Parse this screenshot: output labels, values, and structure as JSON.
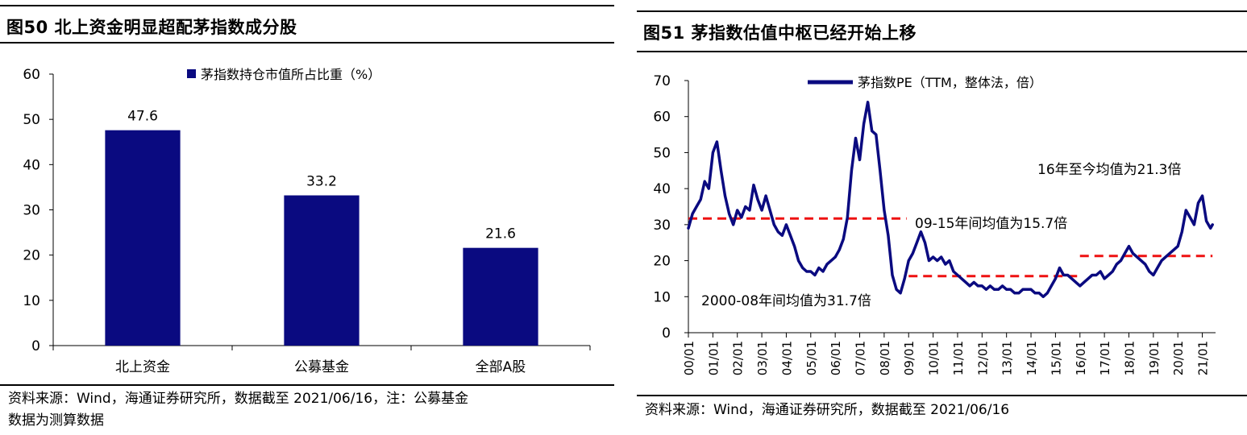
{
  "left": {
    "figure_title": "图50 北上资金明显超配茅指数成分股",
    "source_line1": "资料来源：Wind，海通证券研究所，数据截至 2021/06/16，注：公募基金",
    "source_line2": "数据为测算数据"
  },
  "right": {
    "figure_title": "图51 茅指数估值中枢已经开始上移",
    "source_line1": "资料来源：Wind，海通证券研究所，数据截至 2021/06/16"
  },
  "chart_data": [
    {
      "type": "bar",
      "title": "",
      "categories": [
        "北上资金",
        "公募基金",
        "全部A股"
      ],
      "series": [
        {
          "name": "茅指数持仓市值所占比重（%）",
          "values": [
            47.6,
            33.2,
            21.6
          ]
        }
      ],
      "data_labels": [
        "47.6",
        "33.2",
        "21.6"
      ],
      "ylim": [
        0,
        60
      ],
      "yticks": [
        0,
        10,
        20,
        30,
        40,
        50,
        60
      ],
      "xlabel": "",
      "ylabel": "",
      "grid": false,
      "legend": "top",
      "colors": {
        "bar": "#0a0a80"
      }
    },
    {
      "type": "line",
      "title": "",
      "xlabel": "",
      "ylabel": "",
      "ylim": [
        0,
        70
      ],
      "yticks": [
        0,
        10,
        20,
        30,
        40,
        50,
        60,
        70
      ],
      "x_ticks": [
        "00/01",
        "01/01",
        "02/01",
        "03/01",
        "04/01",
        "05/01",
        "06/01",
        "07/01",
        "08/01",
        "09/01",
        "10/01",
        "11/01",
        "12/01",
        "13/01",
        "14/01",
        "15/01",
        "16/01",
        "17/01",
        "18/01",
        "19/01",
        "20/01",
        "21/01"
      ],
      "grid": false,
      "legend": "top",
      "colors": {
        "line": "#0a0a80",
        "average": "#ee1111"
      },
      "series": [
        {
          "name": "茅指数PE（TTM，整体法，倍）",
          "x": [
            "2000-01",
            "2000-03",
            "2000-05",
            "2000-07",
            "2000-09",
            "2000-11",
            "2001-01",
            "2001-03",
            "2001-05",
            "2001-07",
            "2001-09",
            "2001-11",
            "2002-01",
            "2002-03",
            "2002-05",
            "2002-07",
            "2002-09",
            "2002-11",
            "2003-01",
            "2003-03",
            "2003-05",
            "2003-07",
            "2003-09",
            "2003-11",
            "2004-01",
            "2004-03",
            "2004-05",
            "2004-07",
            "2004-09",
            "2004-11",
            "2005-01",
            "2005-03",
            "2005-05",
            "2005-07",
            "2005-09",
            "2005-11",
            "2006-01",
            "2006-03",
            "2006-05",
            "2006-07",
            "2006-09",
            "2006-11",
            "2007-01",
            "2007-03",
            "2007-05",
            "2007-07",
            "2007-09",
            "2007-11",
            "2008-01",
            "2008-03",
            "2008-05",
            "2008-07",
            "2008-09",
            "2008-11",
            "2009-01",
            "2009-03",
            "2009-05",
            "2009-07",
            "2009-09",
            "2009-11",
            "2010-01",
            "2010-03",
            "2010-05",
            "2010-07",
            "2010-09",
            "2010-11",
            "2011-01",
            "2011-03",
            "2011-05",
            "2011-07",
            "2011-09",
            "2011-11",
            "2012-01",
            "2012-03",
            "2012-05",
            "2012-07",
            "2012-09",
            "2012-11",
            "2013-01",
            "2013-03",
            "2013-05",
            "2013-07",
            "2013-09",
            "2013-11",
            "2014-01",
            "2014-03",
            "2014-05",
            "2014-07",
            "2014-09",
            "2014-11",
            "2015-01",
            "2015-03",
            "2015-05",
            "2015-07",
            "2015-09",
            "2015-11",
            "2016-01",
            "2016-03",
            "2016-05",
            "2016-07",
            "2016-09",
            "2016-11",
            "2017-01",
            "2017-03",
            "2017-05",
            "2017-07",
            "2017-09",
            "2017-11",
            "2018-01",
            "2018-03",
            "2018-05",
            "2018-07",
            "2018-09",
            "2018-11",
            "2019-01",
            "2019-03",
            "2019-05",
            "2019-07",
            "2019-09",
            "2019-11",
            "2020-01",
            "2020-03",
            "2020-05",
            "2020-07",
            "2020-09",
            "2020-11",
            "2021-01",
            "2021-03",
            "2021-05",
            "2021-06"
          ],
          "y": [
            29,
            33,
            35,
            37,
            42,
            40,
            50,
            53,
            45,
            38,
            33,
            30,
            34,
            32,
            35,
            34,
            41,
            37,
            34,
            38,
            34,
            30,
            28,
            27,
            30,
            27,
            24,
            20,
            18,
            17,
            17,
            16,
            18,
            17,
            19,
            20,
            21,
            23,
            26,
            32,
            45,
            54,
            48,
            58,
            64,
            56,
            55,
            45,
            34,
            27,
            16,
            12,
            11,
            15,
            20,
            22,
            25,
            28,
            25,
            20,
            21,
            20,
            21,
            19,
            20,
            17,
            16,
            15,
            14,
            13,
            14,
            13,
            13,
            12,
            13,
            12,
            12,
            13,
            12,
            12,
            11,
            11,
            12,
            12,
            12,
            11,
            11,
            10,
            11,
            13,
            15,
            18,
            16,
            16,
            15,
            14,
            13,
            14,
            15,
            16,
            16,
            17,
            15,
            16,
            17,
            19,
            20,
            22,
            24,
            22,
            21,
            20,
            19,
            17,
            16,
            18,
            20,
            21,
            22,
            23,
            24,
            28,
            34,
            32,
            30,
            36,
            38,
            31,
            29,
            30
          ]
        }
      ],
      "average_lines": [
        {
          "label": "2000-08年间均值为31.7倍",
          "value": 31.7,
          "from": "2000-01",
          "to": "2008-12"
        },
        {
          "label": "09-15年间均值为15.7倍",
          "value": 15.7,
          "from": "2009-01",
          "to": "2015-12"
        },
        {
          "label": "16年至今均值为21.3倍",
          "value": 21.3,
          "from": "2016-01",
          "to": "2021-06"
        }
      ]
    }
  ]
}
